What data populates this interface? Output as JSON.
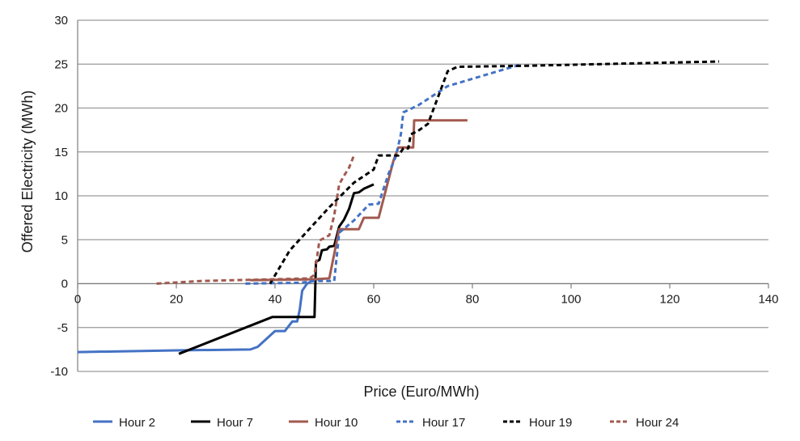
{
  "chart_data": {
    "type": "line",
    "xlabel": "Price (Euro/MWh)",
    "ylabel": "Offered Electricity (MWh)",
    "xlim": [
      0,
      140
    ],
    "ylim": [
      -10,
      30
    ],
    "xticks": [
      0,
      20,
      40,
      60,
      80,
      100,
      120,
      140
    ],
    "yticks": [
      -10,
      -5,
      0,
      5,
      10,
      15,
      20,
      25,
      30
    ],
    "grid": "horizontal",
    "legend_position": "bottom",
    "series": [
      {
        "name": "Hour 2",
        "color": "#4472C4",
        "dash": "solid",
        "points": [
          [
            0,
            -7.8
          ],
          [
            20,
            -7.6
          ],
          [
            35,
            -7.5
          ],
          [
            36.5,
            -7.2
          ],
          [
            40,
            -5.4
          ],
          [
            42,
            -5.4
          ],
          [
            43.5,
            -4.3
          ],
          [
            44.5,
            -4.3
          ],
          [
            45,
            -3.0
          ],
          [
            45.5,
            -0.8
          ],
          [
            46.5,
            0.0
          ],
          [
            47.5,
            0.3
          ],
          [
            48,
            0.5
          ],
          [
            49,
            0.5
          ]
        ]
      },
      {
        "name": "Hour 7",
        "color": "#000000",
        "dash": "solid",
        "points": [
          [
            20.5,
            -8.0
          ],
          [
            39.5,
            -3.8
          ],
          [
            48,
            -3.8
          ],
          [
            48.3,
            2.5
          ],
          [
            49,
            2.7
          ],
          [
            49.5,
            3.8
          ],
          [
            50.5,
            3.9
          ],
          [
            51,
            4.2
          ],
          [
            52,
            4.3
          ],
          [
            53,
            6.5
          ],
          [
            54,
            7.3
          ],
          [
            55,
            8.5
          ],
          [
            56,
            10.3
          ],
          [
            57,
            10.4
          ],
          [
            58,
            10.8
          ],
          [
            60,
            11.3
          ]
        ]
      },
      {
        "name": "Hour 10",
        "color": "#A25A4F",
        "dash": "solid",
        "points": [
          [
            35,
            0.4
          ],
          [
            48,
            0.5
          ],
          [
            51,
            0.6
          ],
          [
            53,
            6.2
          ],
          [
            57,
            6.2
          ],
          [
            58,
            7.5
          ],
          [
            61,
            7.5
          ],
          [
            64,
            14.0
          ],
          [
            65,
            15.5
          ],
          [
            68,
            15.5
          ],
          [
            68.2,
            18.6
          ],
          [
            79,
            18.6
          ]
        ]
      },
      {
        "name": "Hour 17",
        "color": "#4472C4",
        "dash": "dashed",
        "points": [
          [
            34,
            0.0
          ],
          [
            45,
            0.1
          ],
          [
            48,
            0.3
          ],
          [
            52,
            0.3
          ],
          [
            53,
            5.8
          ],
          [
            56,
            7.2
          ],
          [
            59,
            9.0
          ],
          [
            61,
            9.1
          ],
          [
            63,
            12.5
          ],
          [
            64.5,
            14.5
          ],
          [
            65.5,
            17.0
          ],
          [
            66,
            19.5
          ],
          [
            69,
            20.3
          ],
          [
            75,
            22.5
          ],
          [
            90,
            25.0
          ]
        ]
      },
      {
        "name": "Hour 19",
        "color": "#000000",
        "dash": "dashed",
        "points": [
          [
            39,
            0.0
          ],
          [
            43,
            3.8
          ],
          [
            51,
            8.7
          ],
          [
            56,
            11.5
          ],
          [
            60,
            13.0
          ],
          [
            61,
            14.6
          ],
          [
            65,
            14.6
          ],
          [
            66,
            15.4
          ],
          [
            67,
            15.4
          ],
          [
            67.5,
            17.0
          ],
          [
            69,
            17.4
          ],
          [
            71,
            18.2
          ],
          [
            75,
            24.2
          ],
          [
            77,
            24.7
          ],
          [
            90,
            24.8
          ],
          [
            130,
            25.3
          ]
        ]
      },
      {
        "name": "Hour 24",
        "color": "#A25A4F",
        "dash": "dashed",
        "points": [
          [
            16,
            0.0
          ],
          [
            25,
            0.3
          ],
          [
            40,
            0.5
          ],
          [
            47,
            0.6
          ],
          [
            48,
            1.0
          ],
          [
            49,
            4.9
          ],
          [
            51,
            5.5
          ],
          [
            52,
            7.8
          ],
          [
            53,
            11.3
          ],
          [
            54,
            12.3
          ],
          [
            55,
            13.2
          ],
          [
            56,
            14.6
          ]
        ]
      }
    ]
  }
}
